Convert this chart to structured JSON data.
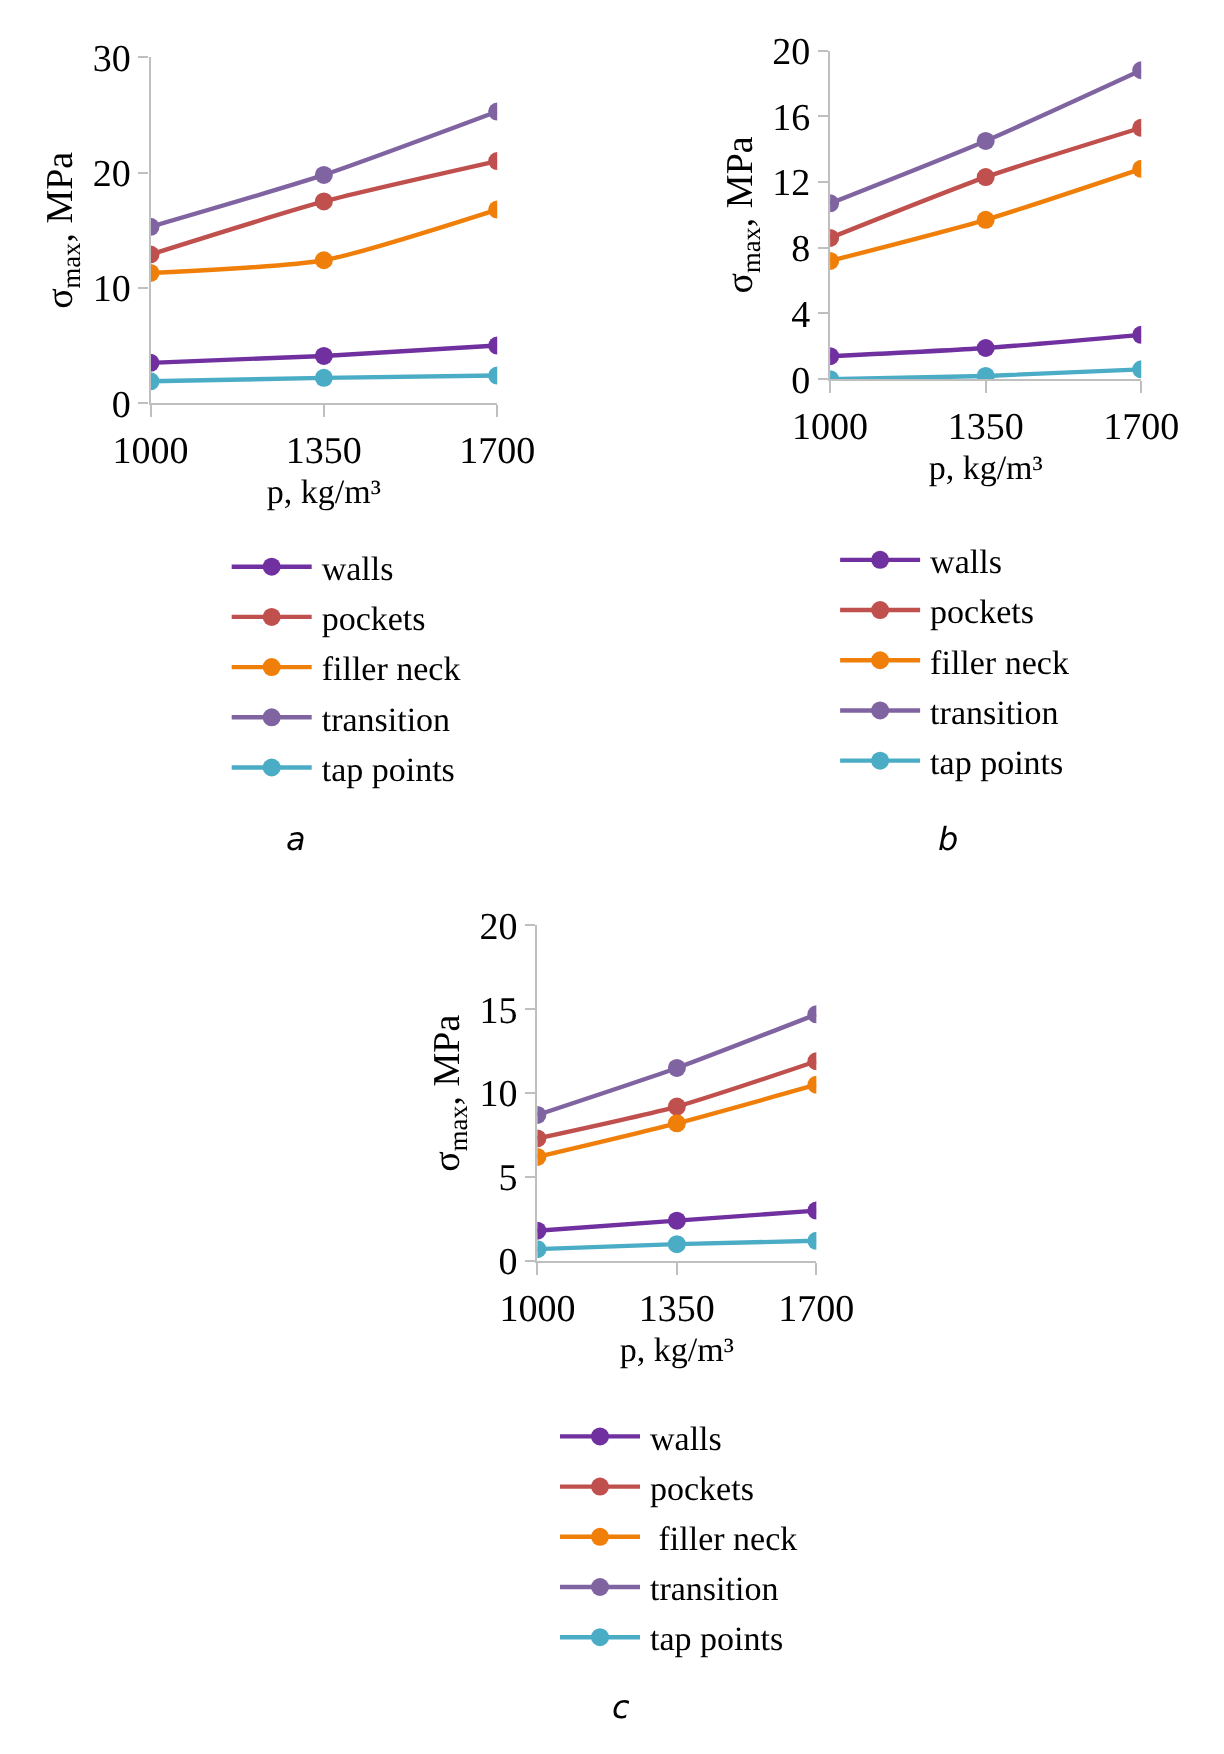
{
  "chart_data": [
    {
      "type": "line",
      "xlabel": "p, kg/m³",
      "ylabel": "σ$_{max}$, MPa",
      "x": [
        1000,
        1350,
        1700
      ],
      "xlim": [
        1000,
        1700
      ],
      "xticks": [
        1000,
        1350,
        1700
      ],
      "ylim": [
        0,
        30
      ],
      "yticks": [
        0,
        10,
        20,
        30
      ],
      "legend": "bottom",
      "marker": "circle",
      "line_style": "solid",
      "annotations": [
        "a"
      ],
      "series": [
        {
          "name": "walls",
          "color": "#7030a0",
          "values": [
            3.5,
            4.1,
            5.0
          ]
        },
        {
          "name": "pockets",
          "color": "#c0504d",
          "values": [
            12.9,
            17.5,
            21.0
          ]
        },
        {
          "name": "filler neck",
          "color": "#f07f09",
          "values": [
            11.3,
            12.4,
            16.8
          ]
        },
        {
          "name": "transition",
          "color": "#8064a2",
          "values": [
            15.3,
            19.8,
            25.3
          ]
        },
        {
          "name": "tap points",
          "color": "#4bacc6",
          "values": [
            1.9,
            2.2,
            2.4
          ]
        }
      ]
    },
    {
      "type": "line",
      "xlabel": "p, kg/m³",
      "ylabel": "σ$_{max}$, MPa",
      "x": [
        1000,
        1350,
        1700
      ],
      "xlim": [
        1000,
        1700
      ],
      "xticks": [
        1000,
        1350,
        1700
      ],
      "ylim": [
        0,
        20
      ],
      "yticks": [
        0,
        4,
        8,
        12,
        16,
        20
      ],
      "legend": "bottom",
      "marker": "circle",
      "line_style": "solid",
      "annotations": [
        "b"
      ],
      "series": [
        {
          "name": "walls",
          "color": "#7030a0",
          "values": [
            1.4,
            1.9,
            2.7
          ]
        },
        {
          "name": "pockets",
          "color": "#c0504d",
          "values": [
            8.6,
            12.3,
            15.3
          ]
        },
        {
          "name": "filler neck",
          "color": "#f07f09",
          "values": [
            7.2,
            9.7,
            12.8
          ]
        },
        {
          "name": "transition",
          "color": "#8064a2",
          "values": [
            10.7,
            14.5,
            18.8
          ]
        },
        {
          "name": "tap points",
          "color": "#4bacc6",
          "values": [
            0.0,
            0.2,
            0.6
          ]
        }
      ]
    },
    {
      "type": "line",
      "xlabel": "p, kg/m³",
      "ylabel": "σ$_{max}$, MPa",
      "x": [
        1000,
        1350,
        1700
      ],
      "xlim": [
        1000,
        1700
      ],
      "xticks": [
        1000,
        1350,
        1700
      ],
      "ylim": [
        0,
        20
      ],
      "yticks": [
        0,
        5,
        10,
        15,
        20
      ],
      "legend": "bottom",
      "marker": "circle",
      "line_style": "solid",
      "annotations": [
        "c"
      ],
      "series": [
        {
          "name": "walls",
          "color": "#7030a0",
          "values": [
            1.8,
            2.4,
            3.0
          ]
        },
        {
          "name": "pockets",
          "color": "#c0504d",
          "values": [
            7.3,
            9.2,
            11.9
          ]
        },
        {
          "name": " filler neck",
          "color": "#f07f09",
          "values": [
            6.2,
            8.2,
            10.5
          ]
        },
        {
          "name": "transition",
          "color": "#8064a2",
          "values": [
            8.7,
            11.5,
            14.7
          ]
        },
        {
          "name": "tap points",
          "color": "#4bacc6",
          "values": [
            0.7,
            1.0,
            1.2
          ]
        }
      ]
    }
  ]
}
